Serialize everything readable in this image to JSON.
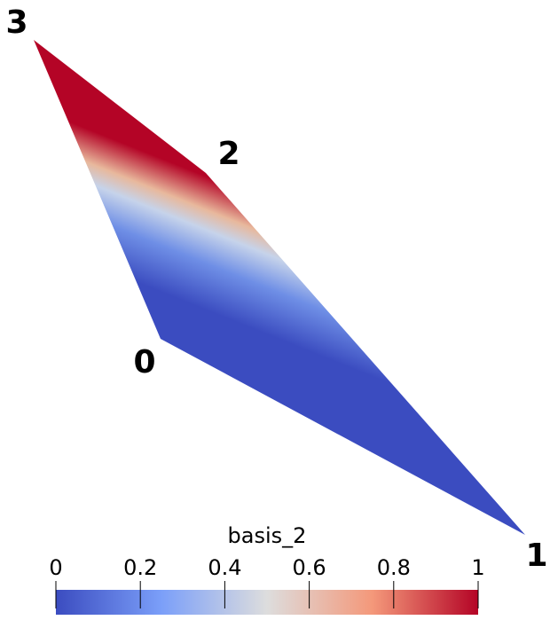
{
  "vertex_labels": [
    "0",
    "1",
    "2",
    "3"
  ],
  "colorbar": {
    "title": "basis_2",
    "range": [
      0,
      1
    ],
    "ticks": [
      0,
      0.2,
      0.4,
      0.6,
      0.8,
      1
    ]
  }
}
